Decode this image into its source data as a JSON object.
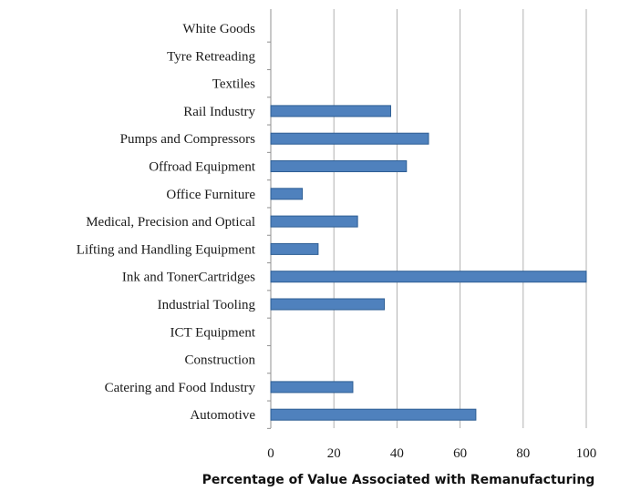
{
  "chart_data": {
    "type": "bar",
    "orientation": "horizontal",
    "categories": [
      "White Goods",
      "Tyre Retreading",
      "Textiles",
      "Rail Industry",
      "Pumps and Compressors",
      "Offroad Equipment",
      "Office Furniture",
      "Medical, Precision and Optical",
      "Lifting and Handling Equipment",
      "Ink and TonerCartridges",
      "Industrial Tooling",
      "ICT Equipment",
      "Construction",
      "Catering and Food Industry",
      "Automotive"
    ],
    "values": [
      0,
      0,
      0,
      38,
      50,
      43,
      10,
      27.5,
      15,
      100,
      36,
      0,
      0,
      26,
      65
    ],
    "xlabel": "Percentage of Value Associated with Remanufacturing",
    "xlim": [
      0,
      100
    ],
    "xticks": [
      "0",
      "20",
      "40",
      "60",
      "80",
      "100"
    ],
    "grid": "vertical",
    "bar_color": "#4f81bd",
    "bar_edge_color": "#2e5e94",
    "grid_color": "#b0b0b0"
  }
}
